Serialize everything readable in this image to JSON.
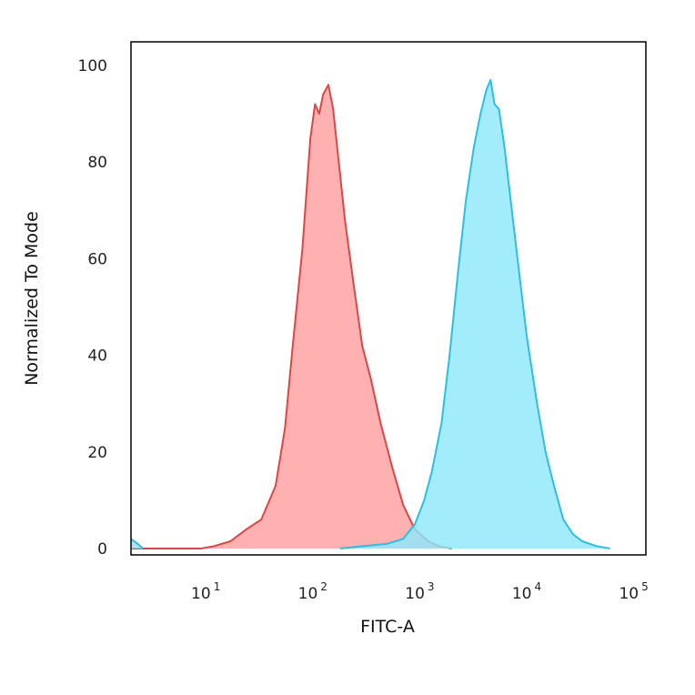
{
  "chart_data": {
    "type": "area",
    "xlabel": "FITC-A",
    "ylabel": "Normalized To Mode",
    "x_scale": "log",
    "xlim": [
      2,
      130000
    ],
    "ylim": [
      0,
      100
    ],
    "grid": false,
    "yticks": [
      0,
      20,
      40,
      60,
      80,
      100
    ],
    "ytick_labels": [
      "0",
      "20",
      "40",
      "60",
      "80",
      "100"
    ],
    "xticks": [
      10,
      100,
      1000,
      10000,
      100000
    ],
    "xtick_labels": [
      {
        "base": "10",
        "exp": "1"
      },
      {
        "base": "10",
        "exp": "2"
      },
      {
        "base": "10",
        "exp": "3"
      },
      {
        "base": "10",
        "exp": "4"
      },
      {
        "base": "10",
        "exp": "5"
      }
    ],
    "series": [
      {
        "fill": "#ff9f9f",
        "stroke": "#d94848",
        "x": [
          2,
          9,
          12,
          17,
          24,
          33,
          45,
          55,
          65,
          80,
          95,
          105,
          115,
          125,
          140,
          155,
          175,
          200,
          240,
          290,
          350,
          430,
          550,
          700,
          900,
          1200,
          1500,
          2000
        ],
        "y": [
          0,
          0,
          0.5,
          1.5,
          4,
          6,
          13,
          25,
          42,
          62,
          85,
          92,
          90,
          94,
          96,
          91,
          80,
          68,
          55,
          42,
          35,
          26,
          17,
          9,
          4,
          1.5,
          0.5,
          0
        ]
      },
      {
        "fill": "#8ee8fb",
        "stroke": "#30bde0",
        "x": [
          180,
          300,
          500,
          700,
          900,
          1100,
          1300,
          1600,
          1900,
          2300,
          2700,
          3200,
          3700,
          4200,
          4600,
          5000,
          5500,
          6200,
          7000,
          8200,
          10000,
          12500,
          15000,
          18000,
          22000,
          27000,
          33000,
          45000,
          60000
        ],
        "y": [
          0,
          0.5,
          1,
          2,
          5,
          10,
          16,
          26,
          40,
          58,
          72,
          83,
          90,
          95,
          97,
          92,
          91,
          83,
          73,
          60,
          44,
          30,
          20,
          13,
          6,
          3,
          1.5,
          0.5,
          0
        ]
      },
      {
        "fill": "#9fdcef",
        "stroke": "#30bde0",
        "x": [
          2,
          2.3,
          2.6
        ],
        "y": [
          2,
          1,
          0
        ]
      }
    ]
  }
}
